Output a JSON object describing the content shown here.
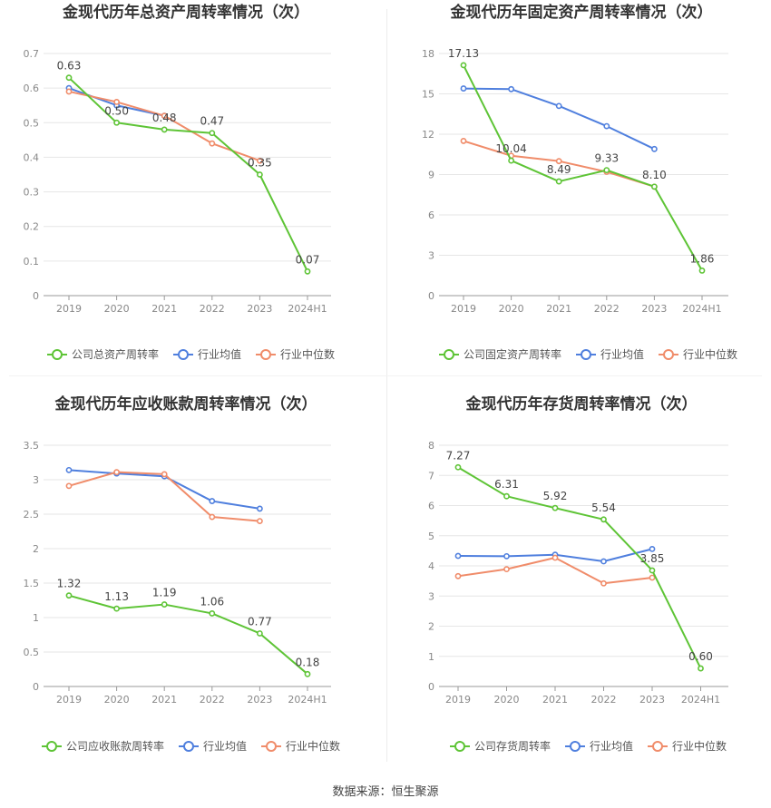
{
  "colors": {
    "company": "#5ec436",
    "avg": "#4f7fde",
    "median": "#f08c6a",
    "grid": "#e6e6e6",
    "axis": "#888888",
    "text": "#555555",
    "title": "#333333"
  },
  "source_text": "数据来源：恒生聚源",
  "chart_data": [
    {
      "type": "line",
      "title": "金现代历年总资产周转率情况（次）",
      "categories": [
        "2019",
        "2020",
        "2021",
        "2022",
        "2023",
        "2024H1"
      ],
      "yticks": [
        "0",
        "0.1",
        "0.2",
        "0.3",
        "0.4",
        "0.5",
        "0.6",
        "0.7"
      ],
      "ylim": [
        0,
        0.7
      ],
      "series": [
        {
          "name": "公司总资产周转率",
          "key": "company",
          "values": [
            0.63,
            0.5,
            0.48,
            0.47,
            0.35,
            0.07
          ],
          "labels": [
            "0.63",
            "0.50",
            "0.48",
            "0.47",
            "0.35",
            "0.07"
          ]
        },
        {
          "name": "行业均值",
          "key": "avg",
          "values": [
            0.6,
            0.55,
            0.52,
            null,
            null,
            null
          ]
        },
        {
          "name": "行业中位数",
          "key": "median",
          "values": [
            0.59,
            0.56,
            0.52,
            0.44,
            0.39,
            null
          ]
        }
      ]
    },
    {
      "type": "line",
      "title": "金现代历年固定资产周转率情况（次）",
      "categories": [
        "2019",
        "2020",
        "2021",
        "2022",
        "2023",
        "2024H1"
      ],
      "yticks": [
        "0",
        "3",
        "6",
        "9",
        "12",
        "15",
        "18"
      ],
      "ylim": [
        0,
        18
      ],
      "series": [
        {
          "name": "公司固定资产周转率",
          "key": "company",
          "values": [
            17.13,
            10.04,
            8.49,
            9.33,
            8.1,
            1.86
          ],
          "labels": [
            "17.13",
            "10.04",
            "8.49",
            "9.33",
            "8.10",
            "1.86"
          ]
        },
        {
          "name": "行业均值",
          "key": "avg",
          "values": [
            15.4,
            15.35,
            14.1,
            12.6,
            10.9,
            null
          ]
        },
        {
          "name": "行业中位数",
          "key": "median",
          "values": [
            11.5,
            10.4,
            10.0,
            9.2,
            8.1,
            null
          ]
        }
      ]
    },
    {
      "type": "line",
      "title": "金现代历年应收账款周转率情况（次）",
      "categories": [
        "2019",
        "2020",
        "2021",
        "2022",
        "2023",
        "2024H1"
      ],
      "yticks": [
        "0",
        "0.5",
        "1",
        "1.5",
        "2",
        "2.5",
        "3",
        "3.5"
      ],
      "ylim": [
        0,
        3.5
      ],
      "series": [
        {
          "name": "公司应收账款周转率",
          "key": "company",
          "values": [
            1.32,
            1.13,
            1.19,
            1.06,
            0.77,
            0.18
          ],
          "labels": [
            "1.32",
            "1.13",
            "1.19",
            "1.06",
            "0.77",
            "0.18"
          ]
        },
        {
          "name": "行业均值",
          "key": "avg",
          "values": [
            3.14,
            3.09,
            3.05,
            2.69,
            2.58,
            null
          ]
        },
        {
          "name": "行业中位数",
          "key": "median",
          "values": [
            2.91,
            3.11,
            3.08,
            2.46,
            2.4,
            null
          ]
        }
      ]
    },
    {
      "type": "line",
      "title": "金现代历年存货周转率情况（次）",
      "categories": [
        "2019",
        "2020",
        "2021",
        "2022",
        "2023",
        "2024H1"
      ],
      "yticks": [
        "0",
        "1",
        "2",
        "3",
        "4",
        "5",
        "6",
        "7",
        "8"
      ],
      "ylim": [
        0,
        8
      ],
      "series": [
        {
          "name": "公司存货周转率",
          "key": "company",
          "values": [
            7.27,
            6.31,
            5.92,
            5.54,
            3.85,
            0.6
          ],
          "labels": [
            "7.27",
            "6.31",
            "5.92",
            "5.54",
            "3.85",
            "0.60"
          ]
        },
        {
          "name": "行业均值",
          "key": "avg",
          "values": [
            4.33,
            4.32,
            4.37,
            4.15,
            4.56,
            null
          ]
        },
        {
          "name": "行业中位数",
          "key": "median",
          "values": [
            3.66,
            3.89,
            4.27,
            3.42,
            3.61,
            null
          ]
        }
      ]
    }
  ]
}
